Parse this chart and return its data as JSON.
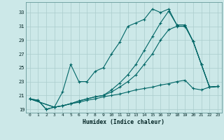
{
  "xlabel": "Humidex (Indice chaleur)",
  "bg_color": "#cce8e8",
  "grid_color": "#aacccc",
  "line_color": "#006666",
  "xlim": [
    -0.5,
    23.5
  ],
  "ylim": [
    18.5,
    34.5
  ],
  "yticks": [
    19,
    21,
    23,
    25,
    27,
    29,
    31,
    33
  ],
  "xticks": [
    0,
    1,
    2,
    3,
    4,
    5,
    6,
    7,
    8,
    9,
    10,
    11,
    12,
    13,
    14,
    15,
    16,
    17,
    18,
    19,
    20,
    21,
    22,
    23
  ],
  "line1_x": [
    0,
    1,
    2,
    3,
    4,
    5,
    6,
    7,
    8,
    9,
    10,
    11,
    12,
    13,
    14,
    15,
    16,
    17,
    18,
    19,
    20,
    21,
    22,
    23
  ],
  "line1_y": [
    20.5,
    20.3,
    19.0,
    19.3,
    21.5,
    25.5,
    23.0,
    23.0,
    24.5,
    25.0,
    27.0,
    28.7,
    31.0,
    31.5,
    32.0,
    33.5,
    33.0,
    33.5,
    31.2,
    31.2,
    28.8,
    25.5,
    22.2,
    22.3
  ],
  "line2_x": [
    0,
    1,
    2,
    3,
    4,
    5,
    6,
    7,
    8,
    9,
    10,
    11,
    12,
    13,
    14,
    15,
    16,
    17,
    18,
    19,
    20,
    21,
    22,
    23
  ],
  "line2_y": [
    20.5,
    20.3,
    19.0,
    19.3,
    19.5,
    19.8,
    20.0,
    20.3,
    20.5,
    20.8,
    21.0,
    21.2,
    21.5,
    21.8,
    22.0,
    22.2,
    22.5,
    22.7,
    23.0,
    23.2,
    22.0,
    21.8,
    22.2,
    22.3
  ],
  "line3_x": [
    0,
    3,
    4,
    5,
    6,
    7,
    8,
    9,
    10,
    11,
    12,
    13,
    14,
    15,
    16,
    17,
    18,
    19,
    20,
    21,
    22,
    23
  ],
  "line3_y": [
    20.5,
    19.3,
    19.5,
    19.8,
    20.2,
    20.5,
    20.8,
    21.0,
    21.8,
    22.8,
    24.0,
    25.5,
    27.5,
    29.5,
    31.5,
    33.2,
    31.2,
    31.2,
    28.8,
    25.5,
    22.2,
    22.3
  ],
  "line4_x": [
    0,
    3,
    4,
    5,
    6,
    7,
    8,
    9,
    10,
    11,
    12,
    13,
    14,
    15,
    16,
    17,
    18,
    19,
    20,
    21,
    22,
    23
  ],
  "line4_y": [
    20.5,
    19.3,
    19.5,
    19.8,
    20.2,
    20.5,
    20.8,
    21.0,
    21.5,
    22.2,
    23.0,
    24.0,
    25.5,
    27.0,
    29.0,
    30.5,
    31.0,
    31.0,
    28.8,
    25.5,
    22.2,
    22.3
  ]
}
